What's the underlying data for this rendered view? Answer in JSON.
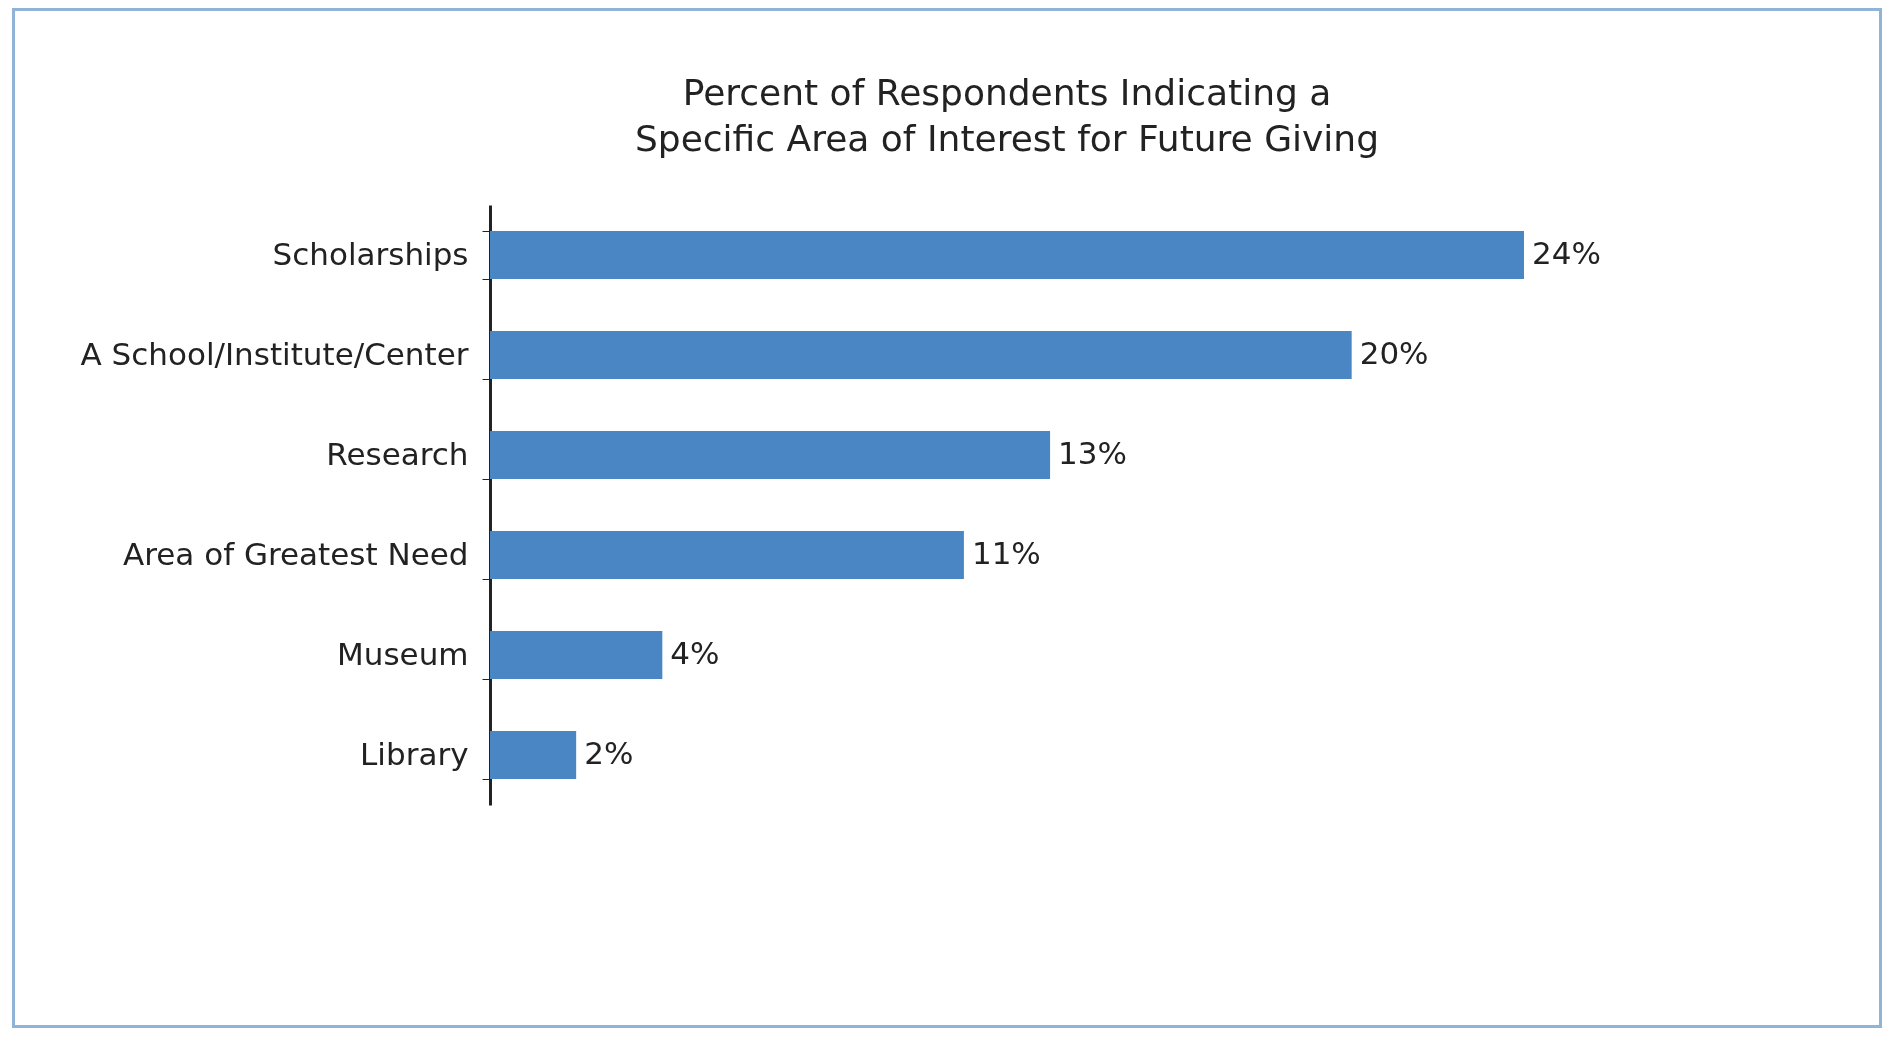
{
  "chart_data": {
    "type": "bar",
    "orientation": "horizontal",
    "title": "Percent of Respondents Indicating a\nSpecific Area of Interest for Future Giving",
    "categories": [
      "Scholarships",
      "A School/Institute/Center",
      "Research",
      "Area of Greatest Need",
      "Museum",
      "Library"
    ],
    "values": [
      24,
      20,
      13,
      11,
      4,
      2
    ],
    "value_labels": [
      "24%",
      "20%",
      "13%",
      "11%",
      "4%",
      "2%"
    ],
    "color": "#4a86c4"
  }
}
